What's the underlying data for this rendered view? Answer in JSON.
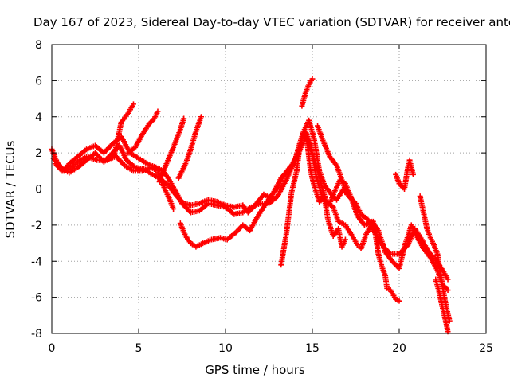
{
  "chart_data": {
    "type": "scatter",
    "title": "Day 167 of 2023, Sidereal Day-to-day VTEC variation (SDTVAR) for receiver antc",
    "xlabel": "GPS time / hours",
    "ylabel": "SDTVAR / TECUs",
    "xlim": [
      0,
      25
    ],
    "ylim": [
      -8,
      8
    ],
    "xticks": [
      0,
      5,
      10,
      15,
      20,
      25
    ],
    "yticks": [
      -8,
      -6,
      -4,
      -2,
      0,
      2,
      4,
      6,
      8
    ],
    "grid": true,
    "marker": "+",
    "color": "#ff0000",
    "series": [
      {
        "name": "track-1",
        "points": [
          [
            0,
            2.2
          ],
          [
            0.3,
            1.5
          ],
          [
            0.7,
            1.0
          ],
          [
            1.0,
            1.4
          ],
          [
            1.5,
            1.8
          ],
          [
            2.0,
            2.2
          ],
          [
            2.5,
            2.4
          ],
          [
            3.0,
            2.0
          ],
          [
            3.5,
            2.5
          ],
          [
            4.0,
            2.9
          ],
          [
            4.5,
            2.0
          ],
          [
            5.0,
            1.7
          ],
          [
            5.5,
            1.4
          ],
          [
            6.0,
            1.2
          ],
          [
            6.4,
            1.0
          ],
          [
            6.7,
            0.6
          ],
          [
            7.0,
            0.1
          ],
          [
            7.5,
            -0.8
          ],
          [
            8.0,
            -1.3
          ],
          [
            8.5,
            -1.2
          ],
          [
            9.0,
            -0.8
          ],
          [
            9.5,
            -0.9
          ],
          [
            10.0,
            -1.0
          ],
          [
            10.5,
            -1.4
          ],
          [
            11.0,
            -1.3
          ],
          [
            11.5,
            -1.0
          ],
          [
            12.0,
            -0.8
          ],
          [
            12.5,
            -0.8
          ],
          [
            13.0,
            -0.4
          ],
          [
            13.5,
            0.5
          ],
          [
            14.0,
            1.6
          ],
          [
            14.3,
            2.6
          ],
          [
            14.6,
            3.2
          ],
          [
            14.9,
            2.5
          ],
          [
            15.2,
            0.8
          ],
          [
            15.5,
            -0.2
          ],
          [
            15.8,
            -0.9
          ],
          [
            16.0,
            -0.8
          ],
          [
            16.3,
            -0.1
          ],
          [
            16.6,
            0.5
          ],
          [
            16.9,
            0.3
          ],
          [
            17.2,
            -0.4
          ],
          [
            17.6,
            -1.5
          ],
          [
            18.0,
            -2.0
          ],
          [
            18.4,
            -1.8
          ],
          [
            18.8,
            -2.3
          ],
          [
            19.2,
            -3.5
          ],
          [
            19.6,
            -4.0
          ],
          [
            20.0,
            -4.4
          ],
          [
            20.3,
            -3.2
          ],
          [
            20.7,
            -2.0
          ],
          [
            21.0,
            -2.6
          ],
          [
            21.4,
            -3.3
          ],
          [
            21.8,
            -3.8
          ],
          [
            22.2,
            -4.5
          ],
          [
            22.5,
            -5.3
          ],
          [
            22.8,
            -5.6
          ]
        ]
      },
      {
        "name": "track-2",
        "points": [
          [
            0.1,
            1.7
          ],
          [
            0.5,
            1.2
          ],
          [
            1.0,
            0.9
          ],
          [
            1.5,
            1.2
          ],
          [
            2.0,
            1.6
          ],
          [
            2.5,
            2.0
          ],
          [
            3.0,
            1.5
          ],
          [
            3.5,
            2.0
          ],
          [
            3.9,
            2.4
          ],
          [
            4.3,
            1.6
          ],
          [
            4.8,
            1.2
          ],
          [
            5.3,
            1.1
          ],
          [
            5.8,
            0.8
          ],
          [
            6.2,
            0.6
          ],
          [
            6.7,
            0.2
          ],
          [
            7.2,
            -0.4
          ],
          [
            7.6,
            -0.8
          ],
          [
            8.0,
            -0.9
          ],
          [
            8.5,
            -0.8
          ],
          [
            9.0,
            -0.6
          ],
          [
            9.5,
            -0.7
          ],
          [
            10.0,
            -0.9
          ],
          [
            10.5,
            -1.0
          ],
          [
            11.0,
            -0.9
          ],
          [
            11.3,
            -1.3
          ],
          [
            11.7,
            -0.9
          ],
          [
            12.2,
            -0.3
          ],
          [
            12.6,
            -0.5
          ],
          [
            13.2,
            0.6
          ],
          [
            13.7,
            1.1
          ],
          [
            14.2,
            2.0
          ],
          [
            14.5,
            3.2
          ],
          [
            14.8,
            3.8
          ],
          [
            15.1,
            2.8
          ],
          [
            15.4,
            1.0
          ],
          [
            15.7,
            0.2
          ],
          [
            16.1,
            -0.3
          ],
          [
            16.4,
            -0.6
          ],
          [
            16.8,
            0.0
          ],
          [
            17.1,
            -0.4
          ],
          [
            17.5,
            -0.8
          ],
          [
            17.8,
            -1.4
          ],
          [
            18.2,
            -1.7
          ],
          [
            18.7,
            -2.6
          ],
          [
            19.1,
            -3.2
          ],
          [
            19.5,
            -3.6
          ],
          [
            20.0,
            -3.6
          ],
          [
            20.5,
            -3.1
          ],
          [
            20.9,
            -2.2
          ],
          [
            21.3,
            -2.8
          ],
          [
            21.7,
            -3.5
          ],
          [
            22.1,
            -3.9
          ],
          [
            22.5,
            -4.5
          ],
          [
            22.8,
            -5.0
          ]
        ]
      },
      {
        "name": "track-3",
        "points": [
          [
            0.2,
            1.4
          ],
          [
            0.6,
            1.0
          ],
          [
            1.0,
            1.1
          ],
          [
            1.5,
            1.5
          ],
          [
            2.0,
            1.8
          ],
          [
            2.6,
            1.6
          ],
          [
            3.1,
            1.6
          ],
          [
            3.7,
            1.8
          ],
          [
            4.2,
            1.3
          ],
          [
            4.7,
            1.0
          ],
          [
            5.2,
            1.0
          ],
          [
            5.7,
            1.2
          ],
          [
            6.1,
            1.0
          ],
          [
            6.5,
            0.0
          ],
          [
            6.8,
            -0.6
          ],
          [
            7.0,
            -1.1
          ]
        ]
      },
      {
        "name": "track-4",
        "points": [
          [
            7.4,
            -1.9
          ],
          [
            7.7,
            -2.6
          ],
          [
            8.0,
            -3.0
          ],
          [
            8.3,
            -3.2
          ],
          [
            8.7,
            -3.0
          ],
          [
            9.2,
            -2.8
          ],
          [
            9.7,
            -2.7
          ],
          [
            10.1,
            -2.8
          ],
          [
            10.6,
            -2.4
          ],
          [
            11.0,
            -2.0
          ],
          [
            11.4,
            -2.3
          ],
          [
            11.8,
            -1.6
          ],
          [
            12.2,
            -1.0
          ],
          [
            12.6,
            -0.4
          ],
          [
            13.0,
            0.1
          ],
          [
            13.3,
            0.7
          ],
          [
            13.7,
            1.2
          ],
          [
            14.0,
            1.5
          ],
          [
            14.3,
            2.2
          ],
          [
            14.6,
            2.8
          ],
          [
            14.9,
            2.2
          ],
          [
            15.2,
            1.4
          ],
          [
            15.5,
            0.3
          ],
          [
            15.8,
            -0.7
          ],
          [
            16.2,
            -1.0
          ],
          [
            16.5,
            -1.8
          ],
          [
            16.9,
            -2.0
          ],
          [
            17.3,
            -2.6
          ],
          [
            17.6,
            -3.1
          ],
          [
            17.8,
            -3.3
          ],
          [
            18.1,
            -2.5
          ],
          [
            18.5,
            -1.8
          ],
          [
            18.8,
            -3.0
          ]
        ]
      },
      {
        "name": "track-5",
        "points": [
          [
            3.2,
            1.6
          ],
          [
            3.6,
            1.9
          ],
          [
            4.0,
            3.7
          ],
          [
            4.4,
            4.2
          ],
          [
            4.7,
            4.7
          ]
        ]
      },
      {
        "name": "track-6",
        "points": [
          [
            4.4,
            2.0
          ],
          [
            4.8,
            2.3
          ],
          [
            5.2,
            3.0
          ],
          [
            5.6,
            3.6
          ],
          [
            5.9,
            3.9
          ],
          [
            6.1,
            4.3
          ]
        ]
      },
      {
        "name": "track-7",
        "points": [
          [
            6.2,
            0.4
          ],
          [
            6.6,
            1.4
          ],
          [
            7.0,
            2.3
          ],
          [
            7.4,
            3.3
          ],
          [
            7.6,
            3.9
          ]
        ]
      },
      {
        "name": "track-8",
        "points": [
          [
            7.3,
            0.6
          ],
          [
            7.7,
            1.4
          ],
          [
            8.0,
            2.2
          ],
          [
            8.3,
            3.2
          ],
          [
            8.6,
            4.0
          ]
        ]
      },
      {
        "name": "track-9",
        "points": [
          [
            13.2,
            -4.2
          ],
          [
            13.5,
            -2.5
          ],
          [
            13.8,
            -0.2
          ],
          [
            14.1,
            1.0
          ],
          [
            14.3,
            2.6
          ],
          [
            14.5,
            3.2
          ],
          [
            14.7,
            2.6
          ],
          [
            14.9,
            1.0
          ],
          [
            15.1,
            0.2
          ],
          [
            15.4,
            -0.7
          ],
          [
            15.7,
            -0.5
          ],
          [
            15.9,
            -1.7
          ],
          [
            16.2,
            -2.6
          ],
          [
            16.5,
            -2.2
          ],
          [
            16.7,
            -3.2
          ],
          [
            16.9,
            -2.8
          ]
        ]
      },
      {
        "name": "track-10",
        "points": [
          [
            14.4,
            4.6
          ],
          [
            14.6,
            5.3
          ],
          [
            14.8,
            5.8
          ],
          [
            15.0,
            6.1
          ]
        ]
      },
      {
        "name": "track-11",
        "points": [
          [
            15.3,
            3.5
          ],
          [
            15.6,
            2.7
          ],
          [
            16.0,
            1.8
          ],
          [
            16.4,
            1.3
          ],
          [
            16.7,
            0.5
          ],
          [
            17.0,
            -0.3
          ]
        ]
      },
      {
        "name": "track-12",
        "points": [
          [
            19.8,
            0.8
          ],
          [
            20.0,
            0.3
          ],
          [
            20.3,
            0.0
          ],
          [
            20.5,
            1.2
          ],
          [
            20.6,
            1.6
          ],
          [
            20.8,
            0.8
          ]
        ]
      },
      {
        "name": "track-13",
        "points": [
          [
            18.6,
            -2.3
          ],
          [
            18.8,
            -3.6
          ],
          [
            19.0,
            -4.3
          ],
          [
            19.2,
            -4.8
          ],
          [
            19.3,
            -5.5
          ],
          [
            19.5,
            -5.6
          ],
          [
            19.8,
            -6.1
          ],
          [
            20.0,
            -6.2
          ]
        ]
      },
      {
        "name": "track-14",
        "points": [
          [
            21.2,
            -0.4
          ],
          [
            21.4,
            -1.3
          ],
          [
            21.6,
            -2.2
          ],
          [
            21.8,
            -2.7
          ],
          [
            22.0,
            -3.1
          ],
          [
            22.2,
            -3.6
          ],
          [
            22.4,
            -4.8
          ],
          [
            22.6,
            -6.0
          ],
          [
            22.8,
            -6.9
          ],
          [
            22.9,
            -7.3
          ]
        ]
      },
      {
        "name": "track-15",
        "points": [
          [
            22.1,
            -5.0
          ],
          [
            22.3,
            -5.7
          ],
          [
            22.5,
            -6.6
          ],
          [
            22.7,
            -7.4
          ],
          [
            22.8,
            -7.9
          ]
        ]
      }
    ]
  }
}
